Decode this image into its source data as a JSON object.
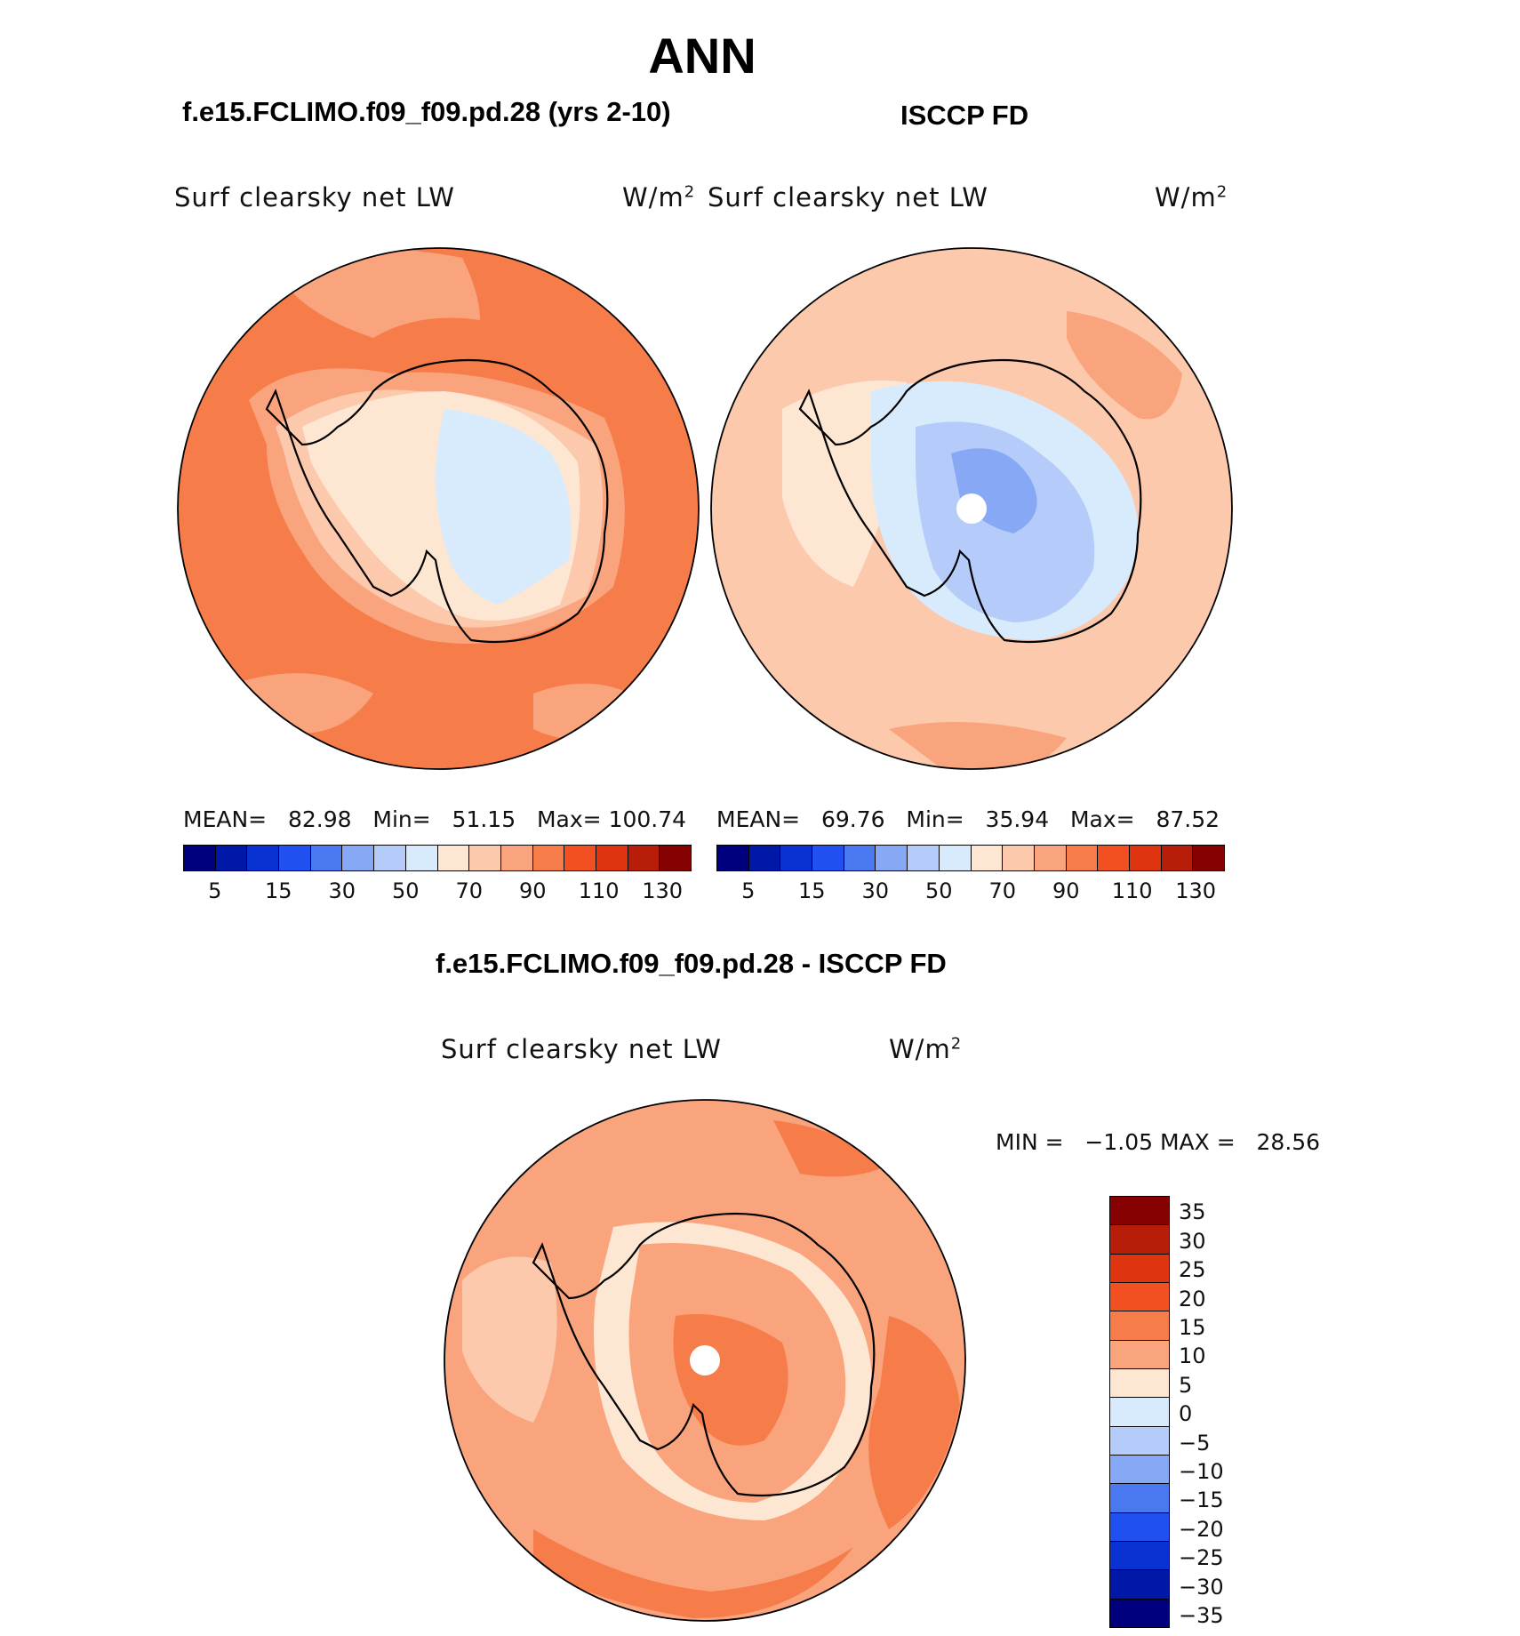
{
  "title": "ANN",
  "left_panel": {
    "case_title": "f.e15.FCLIMO.f09_f09.pd.28 (yrs 2-10)",
    "variable": "Surf clearsky net LW",
    "units": "W/m",
    "units_sup": "2",
    "stats": {
      "mean_label": "MEAN=",
      "mean": "82.98",
      "min_label": "Min=",
      "min": "51.15",
      "max_label": "Max=",
      "max": "100.74"
    }
  },
  "right_panel": {
    "case_title": "ISCCP FD",
    "variable": "Surf clearsky net LW",
    "units": "W/m",
    "units_sup": "2",
    "stats": {
      "mean_label": "MEAN=",
      "mean": "69.76",
      "min_label": "Min=",
      "min": "35.94",
      "max_label": "Max=",
      "max": "87.52"
    }
  },
  "diff_panel": {
    "case_title": "f.e15.FCLIMO.f09_f09.pd.28 - ISCCP FD",
    "variable": "Surf clearsky net LW",
    "units": "W/m",
    "units_sup": "2",
    "stats": {
      "min_label": "MIN =",
      "min": "−1.05",
      "max_label": "MAX =",
      "max": "28.56"
    }
  },
  "colorbar_abs": {
    "colors": [
      "#00007f",
      "#0018a8",
      "#0a32d2",
      "#2050f0",
      "#4a78f0",
      "#86a8f5",
      "#b5ccfa",
      "#d8ebfc",
      "#fde6d2",
      "#fcc9ac",
      "#f9a47c",
      "#f67c4a",
      "#f25020",
      "#de3510",
      "#b71d08",
      "#850000"
    ],
    "tick_labels": [
      "5",
      "15",
      "30",
      "50",
      "70",
      "90",
      "110",
      "130"
    ]
  },
  "colorbar_diff": {
    "colors": [
      "#850000",
      "#b71d08",
      "#de3510",
      "#f25020",
      "#f67c4a",
      "#f9a47c",
      "#fde6d2",
      "#d8ebfc",
      "#b5ccfa",
      "#86a8f5",
      "#4a78f0",
      "#2050f0",
      "#0a32d2",
      "#0018a8",
      "#00007f"
    ],
    "tick_labels": [
      "35",
      "30",
      "25",
      "20",
      "15",
      "10",
      "5",
      "0",
      "−5",
      "−10",
      "−15",
      "−20",
      "−25",
      "−30",
      "−35"
    ]
  }
}
